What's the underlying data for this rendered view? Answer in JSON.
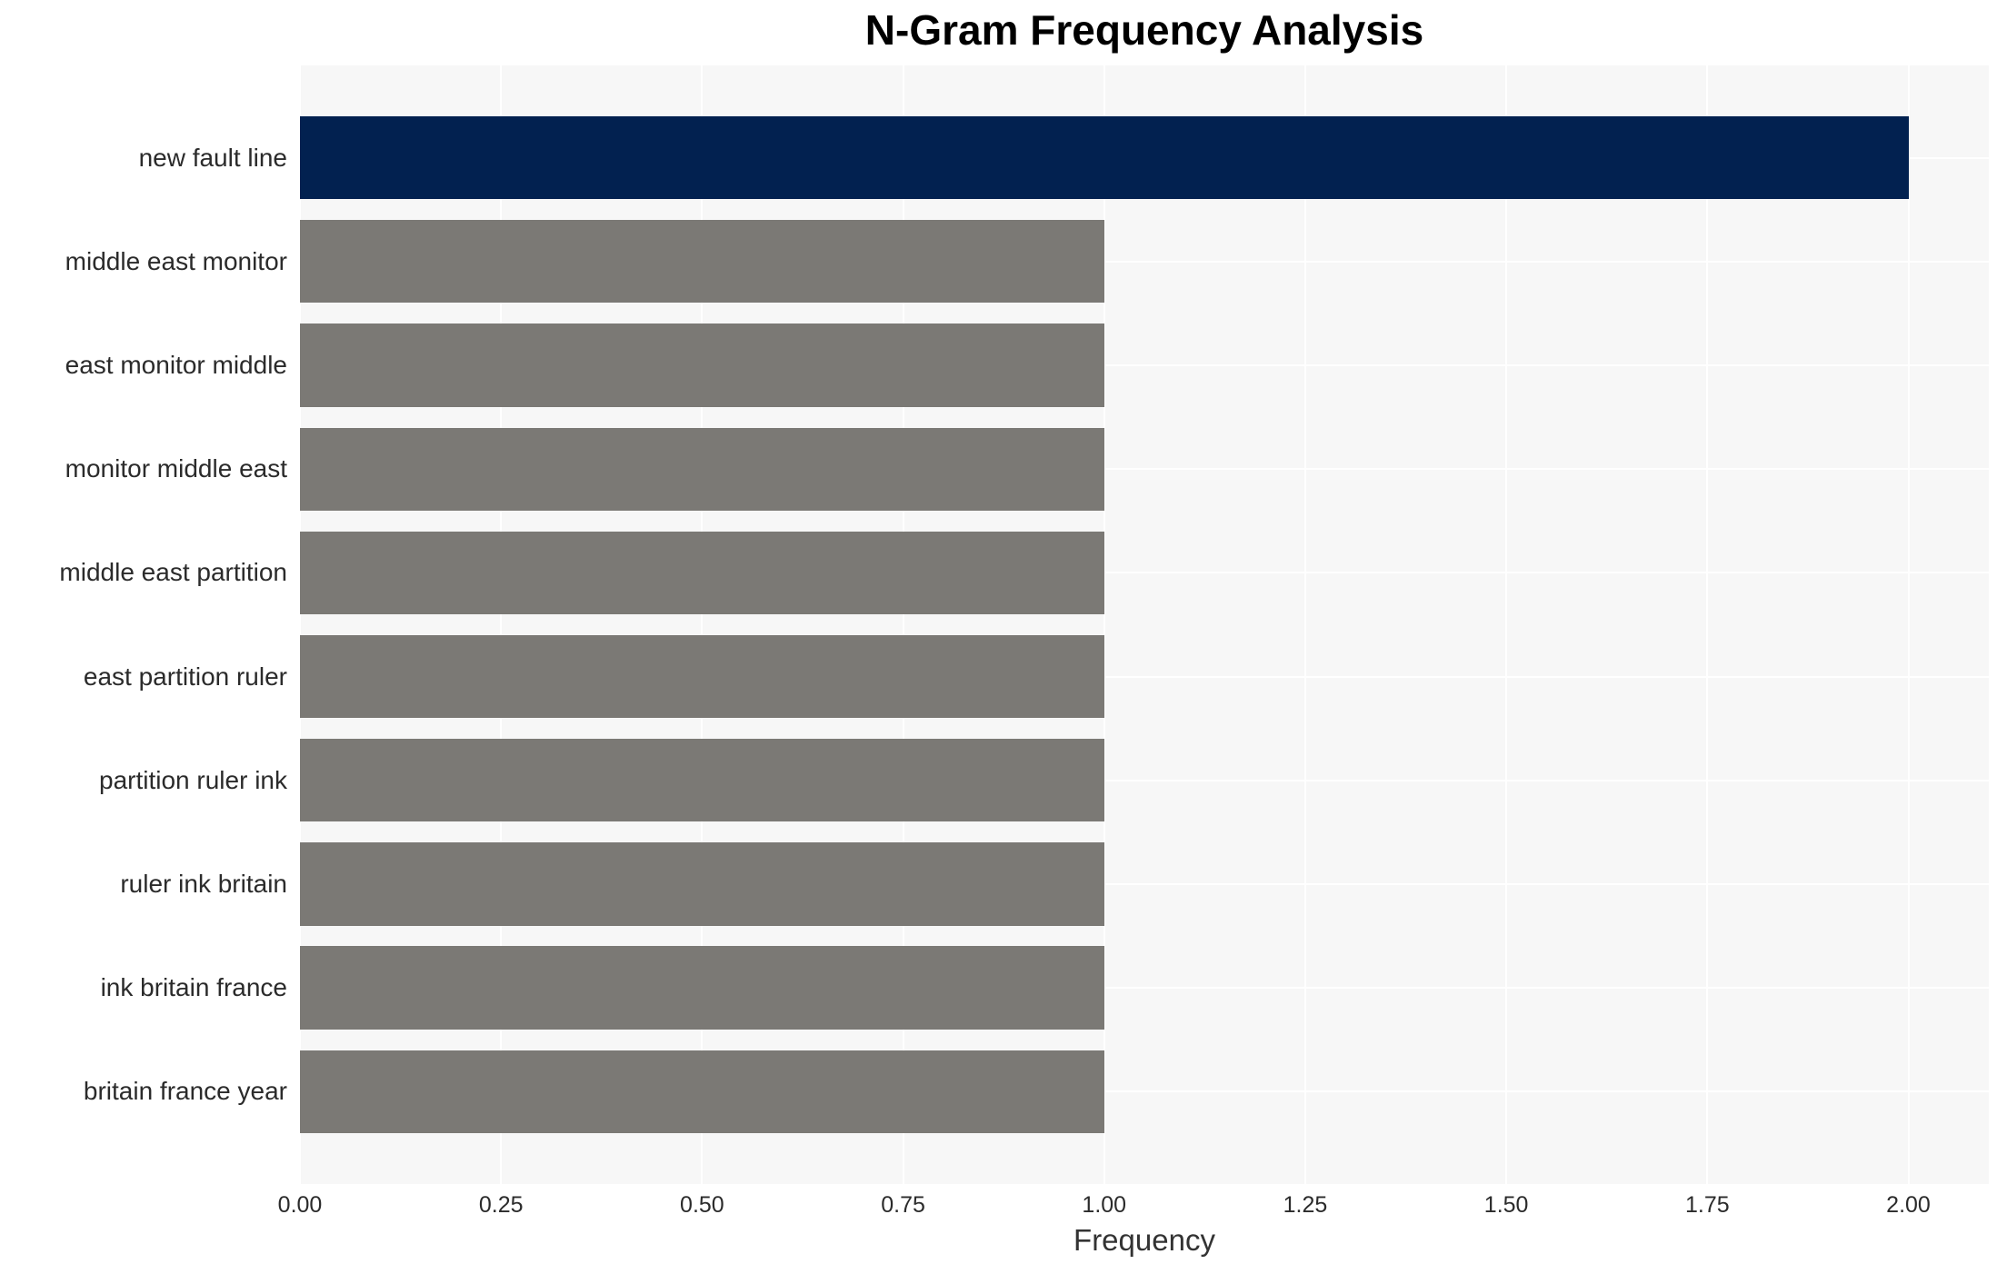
{
  "title": "N-Gram Frequency Analysis",
  "chart_data": {
    "type": "bar",
    "orientation": "horizontal",
    "title": "N-Gram Frequency Analysis",
    "xlabel": "Frequency",
    "ylabel": "",
    "categories": [
      "new fault line",
      "middle east monitor",
      "east monitor middle",
      "monitor middle east",
      "middle east partition",
      "east partition ruler",
      "partition ruler ink",
      "ruler ink britain",
      "ink britain france",
      "britain france year"
    ],
    "values": [
      2,
      1,
      1,
      1,
      1,
      1,
      1,
      1,
      1,
      1
    ],
    "bar_colors": [
      "#022150",
      "#7b7975",
      "#7b7975",
      "#7b7975",
      "#7b7975",
      "#7b7975",
      "#7b7975",
      "#7b7975",
      "#7b7975",
      "#7b7975"
    ],
    "highlight_color": "#022150",
    "default_bar_color": "#7b7975",
    "xlim": [
      0,
      2.1
    ],
    "xticks": [
      "0.00",
      "0.25",
      "0.50",
      "0.75",
      "1.00",
      "1.25",
      "1.50",
      "1.75",
      "2.00"
    ],
    "xtick_values": [
      0,
      0.25,
      0.5,
      0.75,
      1.0,
      1.25,
      1.5,
      1.75,
      2.0
    ],
    "grid": true,
    "legend": false,
    "plot_background": "#f7f7f7",
    "grid_color": "#ffffff"
  }
}
